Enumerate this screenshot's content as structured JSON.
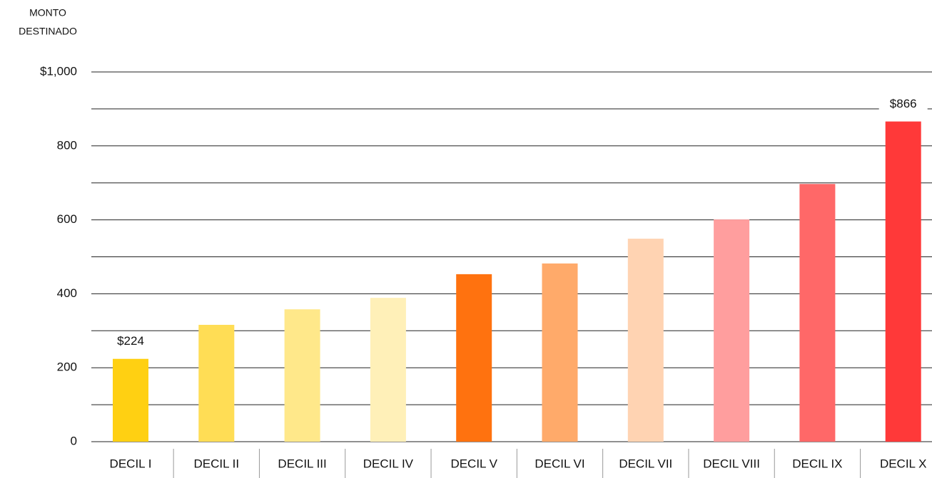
{
  "chart_data": {
    "type": "bar",
    "y_label": [
      "MONTO",
      "DESTINADO"
    ],
    "categories": [
      "DECIL I",
      "DECIL II",
      "DECIL III",
      "DECIL IV",
      "DECIL V",
      "DECIL VI",
      "DECIL VII",
      "DECIL VIII",
      "DECIL IX",
      "DECIL X"
    ],
    "values": [
      224,
      316,
      358,
      389,
      453,
      482,
      549,
      601,
      697,
      866
    ],
    "value_labels": [
      "$224",
      null,
      null,
      null,
      null,
      null,
      null,
      null,
      null,
      "$866"
    ],
    "colors": [
      "#ffd012",
      "#ffdd55",
      "#ffe88a",
      "#fff0b8",
      "#ff720f",
      "#ffaa6a",
      "#ffd3b2",
      "#ff9e9e",
      "#ff6868",
      "#ff3939"
    ],
    "ylim": [
      0,
      1000
    ],
    "yticks": [
      0,
      200,
      400,
      600,
      800,
      {
        "value": 1000,
        "label": "$1,000"
      }
    ],
    "minor_yticks": [
      100,
      300,
      500,
      700,
      900
    ],
    "grid": true
  }
}
